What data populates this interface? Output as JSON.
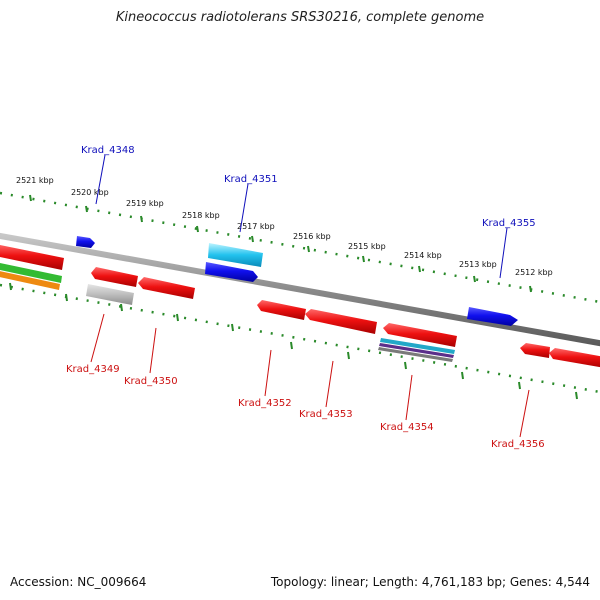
{
  "title": "Kineococcus radiotolerans SRS30216, complete genome",
  "footer": {
    "accession": "Accession: NC_009664",
    "summary": "Topology: linear; Length: 4,761,183 bp; Genes: 4,544"
  },
  "colors": {
    "forward_gene": "#1010ee",
    "reverse_gene": "#ee1111",
    "backbone": "#8a8a8a",
    "ticks": "#2a8a2a",
    "label_forward": "#1010bb",
    "label_reverse": "#cc1111"
  },
  "tick_labels": [
    "2521 kbp",
    "2520 kbp",
    "2519 kbp",
    "2518 kbp",
    "2517 kbp",
    "2516 kbp",
    "2515 kbp",
    "2514 kbp",
    "2513 kbp",
    "2512 kbp"
  ],
  "genes": [
    {
      "id": "Krad_4348",
      "strand": "forward"
    },
    {
      "id": "Krad_4349",
      "strand": "reverse"
    },
    {
      "id": "Krad_4350",
      "strand": "reverse"
    },
    {
      "id": "Krad_4351",
      "strand": "forward"
    },
    {
      "id": "Krad_4352",
      "strand": "reverse"
    },
    {
      "id": "Krad_4353",
      "strand": "reverse"
    },
    {
      "id": "Krad_4354",
      "strand": "reverse"
    },
    {
      "id": "Krad_4355",
      "strand": "forward"
    },
    {
      "id": "Krad_4356",
      "strand": "reverse"
    }
  ]
}
